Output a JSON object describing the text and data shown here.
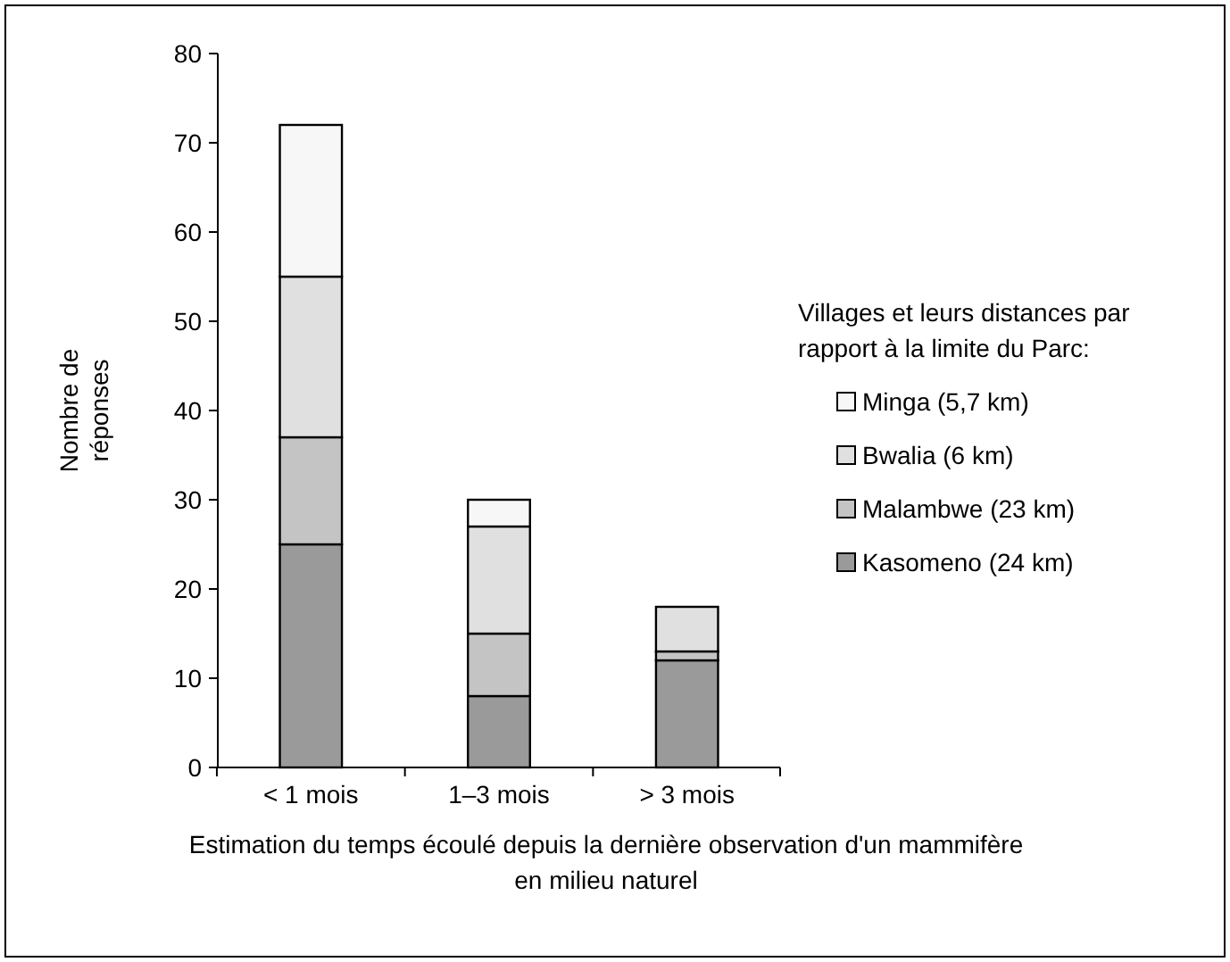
{
  "chart_data": {
    "type": "bar",
    "stacked": true,
    "xlabel": "Estimation du temps écoulé depuis la dernière observation d'un mammifère en milieu naturel",
    "ylabel": "Nombre de réponses",
    "legend_title": "Villages et leurs distances par rapport à la limite du Parc:",
    "categories": [
      "< 1 mois",
      "1–3 mois",
      "> 3 mois"
    ],
    "series": [
      {
        "name": "Kasomeno (24 km)",
        "color": "#9a9a9a",
        "values": [
          25,
          8,
          12
        ]
      },
      {
        "name": "Malambwe (23 km)",
        "color": "#c4c4c4",
        "values": [
          12,
          7,
          1
        ]
      },
      {
        "name": "Bwalia (6 km)",
        "color": "#e0e0e0",
        "values": [
          18,
          12,
          5
        ]
      },
      {
        "name": "Minga (5,7 km)",
        "color": "#f7f7f7",
        "values": [
          17,
          3,
          0
        ]
      }
    ],
    "ylim": [
      0,
      80
    ],
    "yticks": [
      0,
      10,
      20,
      30,
      40,
      50,
      60,
      70,
      80
    ],
    "grid": false,
    "legend": "right"
  }
}
